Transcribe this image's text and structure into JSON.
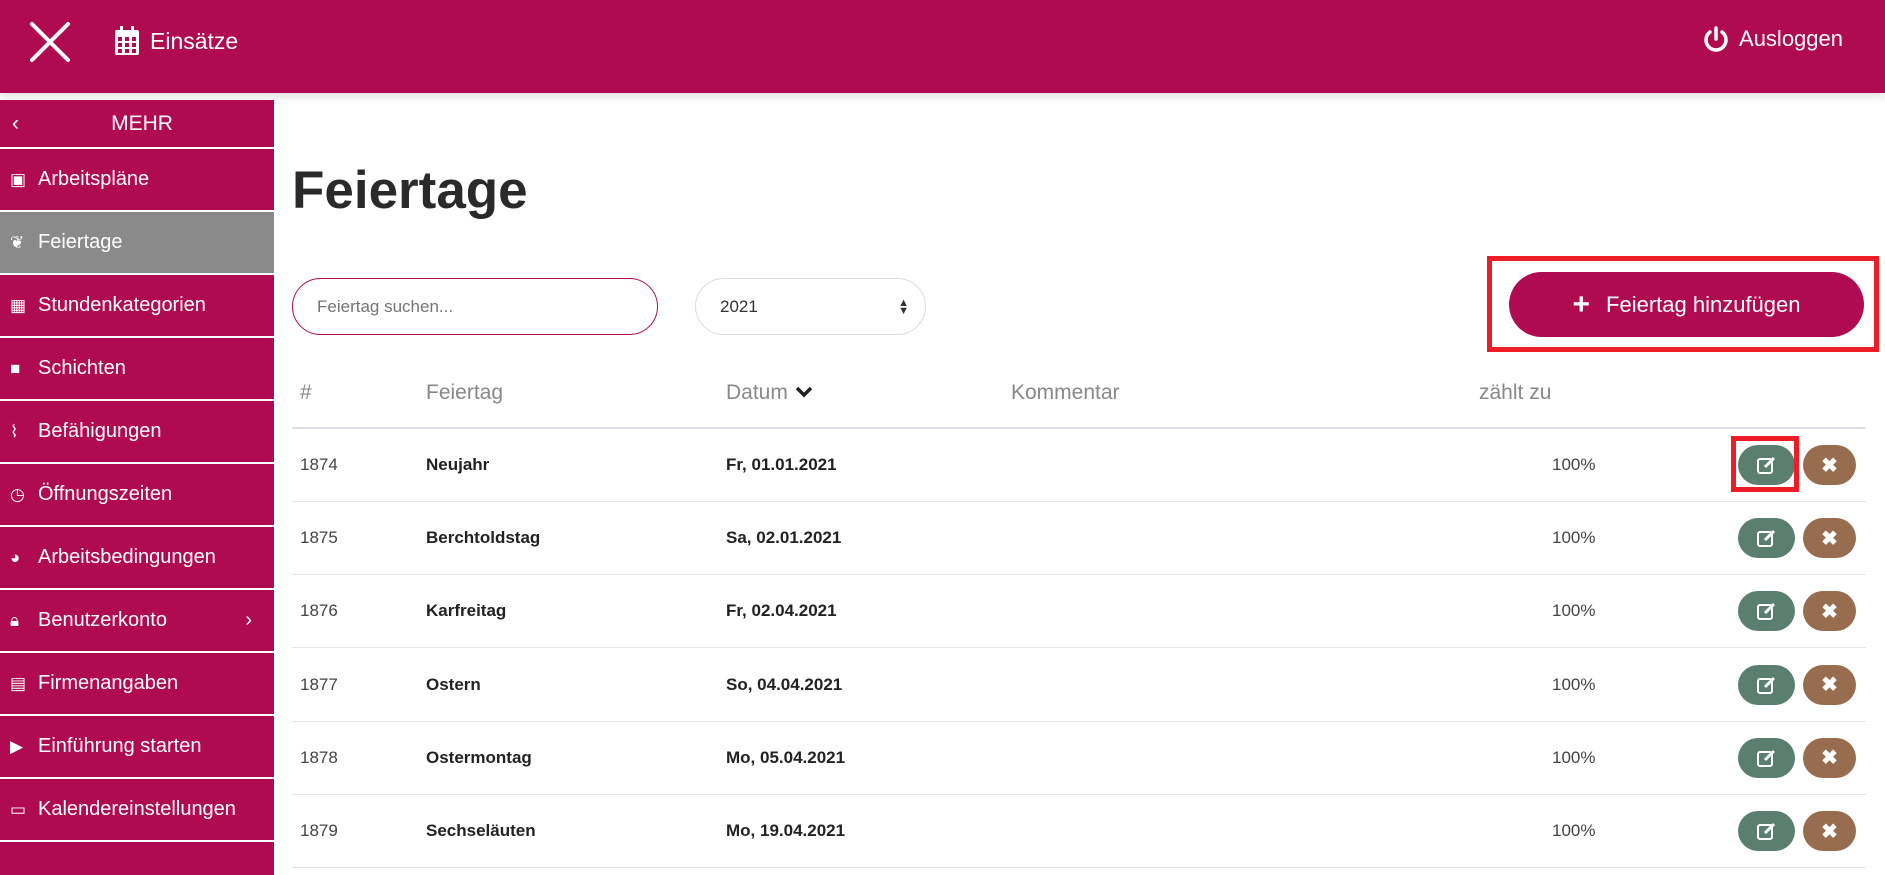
{
  "header": {
    "einsatze": "Einsätze",
    "logout": "Ausloggen"
  },
  "sidebar": {
    "head": "MEHR",
    "items": [
      {
        "label": "Arbeitspläne",
        "icon": "calendar-plus-icon"
      },
      {
        "label": "Feiertage",
        "icon": "leaf-icon",
        "active": true
      },
      {
        "label": "Stundenkategorien",
        "icon": "grid-icon"
      },
      {
        "label": "Schichten",
        "icon": "briefcase-icon"
      },
      {
        "label": "Befähigungen",
        "icon": "paperclip-icon"
      },
      {
        "label": "Öffnungszeiten",
        "icon": "clock-icon"
      },
      {
        "label": "Arbeitsbedingungen",
        "icon": "dashboard-icon"
      },
      {
        "label": "Benutzerkonto",
        "icon": "lock-icon"
      },
      {
        "label": "Firmenangaben",
        "icon": "building-icon"
      },
      {
        "label": "Einführung starten",
        "icon": "play-icon"
      },
      {
        "label": "Kalendereinstellungen",
        "icon": "calendar-icon"
      }
    ]
  },
  "main": {
    "title": "Feiertage",
    "search_placeholder": "Feiertag suchen...",
    "year": "2021",
    "add_label": "Feiertag hinzufügen"
  },
  "table": {
    "headers": [
      "#",
      "Feiertag",
      "Datum",
      "Kommentar",
      "zählt zu"
    ],
    "rows": [
      {
        "id": "1874",
        "name": "Neujahr",
        "date": "Fr, 01.01.2021",
        "comment": "",
        "counts": "100%"
      },
      {
        "id": "1875",
        "name": "Berchtoldstag",
        "date": "Sa, 02.01.2021",
        "comment": "",
        "counts": "100%"
      },
      {
        "id": "1876",
        "name": "Karfreitag",
        "date": "Fr, 02.04.2021",
        "comment": "",
        "counts": "100%"
      },
      {
        "id": "1877",
        "name": "Ostern",
        "date": "So, 04.04.2021",
        "comment": "",
        "counts": "100%"
      },
      {
        "id": "1878",
        "name": "Ostermontag",
        "date": "Mo, 05.04.2021",
        "comment": "",
        "counts": "100%"
      },
      {
        "id": "1879",
        "name": "Sechseläuten",
        "date": "Mo, 19.04.2021",
        "comment": "",
        "counts": "100%"
      }
    ]
  },
  "colors": {
    "brand": "#b00b50",
    "active": "#8a8a8a",
    "edit": "#5a7e70",
    "delete": "#986c4f",
    "highlight": "#ee1c25"
  }
}
